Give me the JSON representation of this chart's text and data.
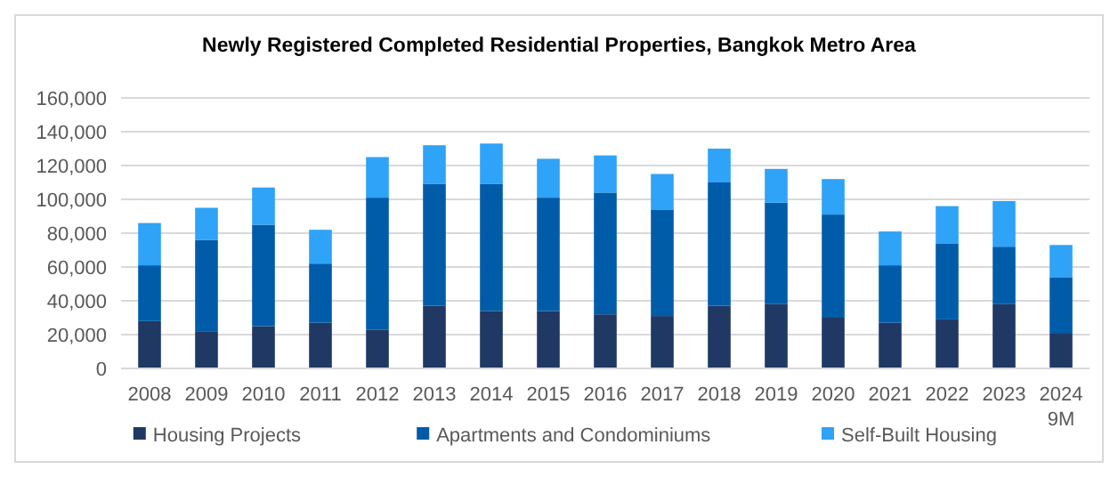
{
  "chart_data": {
    "type": "bar",
    "title": "Newly Registered Completed Residential Properties, Bangkok Metro Area",
    "categories": [
      "2008",
      "2009",
      "2010",
      "2011",
      "2012",
      "2013",
      "2014",
      "2015",
      "2016",
      "2017",
      "2018",
      "2019",
      "2020",
      "2021",
      "2022",
      "2023",
      "2024\n9M"
    ],
    "stacked": true,
    "ylim": [
      0,
      160000
    ],
    "yticks": [
      {
        "value": 0,
        "label": "0"
      },
      {
        "value": 20000,
        "label": "20,000"
      },
      {
        "value": 40000,
        "label": "40,000"
      },
      {
        "value": 60000,
        "label": "60,000"
      },
      {
        "value": 80000,
        "label": "80,000"
      },
      {
        "value": 100000,
        "label": "100,000"
      },
      {
        "value": 120000,
        "label": "120,000"
      },
      {
        "value": 140000,
        "label": "140,000"
      },
      {
        "value": 160000,
        "label": "160,000"
      }
    ],
    "grid": "y",
    "legend": "bottom",
    "series": [
      {
        "name": "Housing Projects",
        "color": "#203864",
        "values": [
          28000,
          22000,
          25000,
          27000,
          23000,
          37000,
          34000,
          34000,
          32000,
          31000,
          37000,
          38000,
          30000,
          27000,
          29000,
          38000,
          21000
        ]
      },
      {
        "name": "Apartments and Condominiums",
        "color": "#005ca8",
        "values": [
          33000,
          54000,
          60000,
          35000,
          78000,
          72000,
          75000,
          67000,
          72000,
          63000,
          73000,
          60000,
          61000,
          34000,
          45000,
          34000,
          33000
        ]
      },
      {
        "name": "Self-Built Housing",
        "color": "#2ea3f7",
        "values": [
          25000,
          19000,
          22000,
          20000,
          24000,
          23000,
          24000,
          23000,
          22000,
          21000,
          20000,
          20000,
          21000,
          20000,
          22000,
          27000,
          19000
        ]
      }
    ]
  }
}
